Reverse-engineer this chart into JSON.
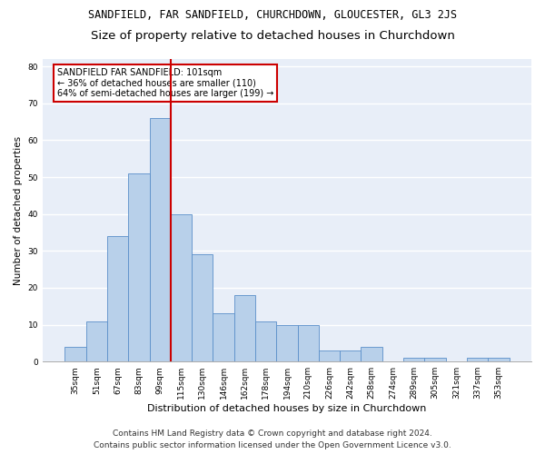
{
  "title": "SANDFIELD, FAR SANDFIELD, CHURCHDOWN, GLOUCESTER, GL3 2JS",
  "subtitle": "Size of property relative to detached houses in Churchdown",
  "xlabel": "Distribution of detached houses by size in Churchdown",
  "ylabel": "Number of detached properties",
  "categories": [
    "35sqm",
    "51sqm",
    "67sqm",
    "83sqm",
    "99sqm",
    "115sqm",
    "130sqm",
    "146sqm",
    "162sqm",
    "178sqm",
    "194sqm",
    "210sqm",
    "226sqm",
    "242sqm",
    "258sqm",
    "274sqm",
    "289sqm",
    "305sqm",
    "321sqm",
    "337sqm",
    "353sqm"
  ],
  "values": [
    4,
    11,
    34,
    51,
    66,
    40,
    29,
    13,
    18,
    11,
    10,
    10,
    3,
    3,
    4,
    0,
    1,
    1,
    0,
    1,
    1
  ],
  "bar_color": "#b8d0ea",
  "bar_edge_color": "#5b8fc9",
  "highlight_line_color": "#cc0000",
  "highlight_line_index": 4,
  "annotation_text": "SANDFIELD FAR SANDFIELD: 101sqm\n← 36% of detached houses are smaller (110)\n64% of semi-detached houses are larger (199) →",
  "annotation_box_facecolor": "white",
  "annotation_box_edgecolor": "#cc0000",
  "ylim": [
    0,
    82
  ],
  "yticks": [
    0,
    10,
    20,
    30,
    40,
    50,
    60,
    70,
    80
  ],
  "plot_bg_color": "#e8eef8",
  "grid_color": "white",
  "footer_line1": "Contains HM Land Registry data © Crown copyright and database right 2024.",
  "footer_line2": "Contains public sector information licensed under the Open Government Licence v3.0.",
  "title_fontsize": 8.5,
  "subtitle_fontsize": 9.5,
  "annotation_fontsize": 7,
  "ylabel_fontsize": 7.5,
  "xlabel_fontsize": 8,
  "tick_fontsize": 6.5,
  "footer_fontsize": 6.5
}
